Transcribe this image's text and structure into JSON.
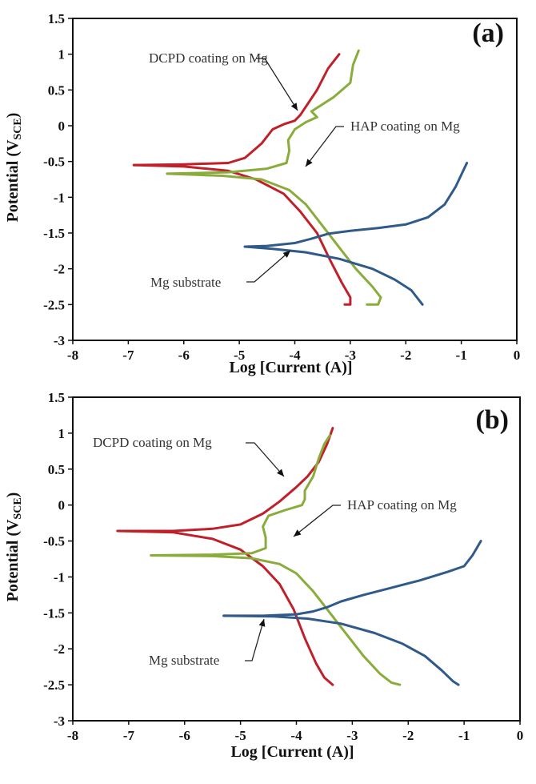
{
  "chart_data": [
    {
      "type": "line",
      "panel_label": "(a)",
      "xlabel": "Log [Current (A)]",
      "ylabel": "Potential (V",
      "ylabel_sub": "SCE",
      "ylabel_close": ")",
      "xlim": [
        -8,
        0
      ],
      "ylim": [
        -3,
        1.5
      ],
      "xticks": [
        "-8",
        "-7",
        "-6",
        "-5",
        "-4",
        "-3",
        "-2",
        "-1",
        "0"
      ],
      "yticks": [
        "1.5",
        "1",
        "0.5",
        "0",
        "-0.5",
        "-1",
        "-1.5",
        "-2",
        "-2.5",
        "-3"
      ],
      "grid": false,
      "series": [
        {
          "name": "DCPD coating on Mg",
          "color": "#c0202a",
          "anodic": [
            [
              -6.9,
              -0.55
            ],
            [
              -6.0,
              -0.54
            ],
            [
              -5.2,
              -0.52
            ],
            [
              -4.9,
              -0.45
            ],
            [
              -4.6,
              -0.25
            ],
            [
              -4.4,
              -0.05
            ],
            [
              -4.2,
              0.02
            ],
            [
              -4.0,
              0.07
            ],
            [
              -3.9,
              0.15
            ],
            [
              -3.6,
              0.5
            ],
            [
              -3.4,
              0.8
            ],
            [
              -3.2,
              1.0
            ]
          ],
          "cathodic": [
            [
              -6.9,
              -0.55
            ],
            [
              -6.0,
              -0.57
            ],
            [
              -5.2,
              -0.63
            ],
            [
              -4.7,
              -0.75
            ],
            [
              -4.2,
              -0.95
            ],
            [
              -3.9,
              -1.2
            ],
            [
              -3.6,
              -1.5
            ],
            [
              -3.35,
              -1.9
            ],
            [
              -3.15,
              -2.2
            ],
            [
              -3.0,
              -2.4
            ],
            [
              -3.0,
              -2.5
            ],
            [
              -3.1,
              -2.5
            ]
          ]
        },
        {
          "name": "HAP coating on Mg",
          "color": "#8aac3c",
          "anodic": [
            [
              -6.3,
              -0.67
            ],
            [
              -5.2,
              -0.65
            ],
            [
              -4.5,
              -0.6
            ],
            [
              -4.15,
              -0.52
            ],
            [
              -4.1,
              -0.35
            ],
            [
              -4.12,
              -0.2
            ],
            [
              -4.0,
              -0.05
            ],
            [
              -3.8,
              0.05
            ],
            [
              -3.6,
              0.12
            ],
            [
              -3.7,
              0.2
            ],
            [
              -3.3,
              0.4
            ],
            [
              -3.0,
              0.6
            ],
            [
              -2.95,
              0.85
            ],
            [
              -2.85,
              1.05
            ]
          ],
          "cathodic": [
            [
              -6.3,
              -0.67
            ],
            [
              -5.3,
              -0.7
            ],
            [
              -4.6,
              -0.75
            ],
            [
              -4.1,
              -0.9
            ],
            [
              -3.8,
              -1.1
            ],
            [
              -3.5,
              -1.4
            ],
            [
              -3.2,
              -1.7
            ],
            [
              -2.9,
              -2.0
            ],
            [
              -2.6,
              -2.25
            ],
            [
              -2.45,
              -2.4
            ],
            [
              -2.5,
              -2.5
            ],
            [
              -2.7,
              -2.5
            ]
          ]
        },
        {
          "name": "Mg substrate",
          "color": "#2f5a8a",
          "anodic": [
            [
              -4.9,
              -1.69
            ],
            [
              -4.5,
              -1.68
            ],
            [
              -4.0,
              -1.64
            ],
            [
              -3.7,
              -1.58
            ],
            [
              -3.4,
              -1.51
            ],
            [
              -3.0,
              -1.47
            ],
            [
              -2.5,
              -1.43
            ],
            [
              -2.0,
              -1.38
            ],
            [
              -1.6,
              -1.28
            ],
            [
              -1.3,
              -1.1
            ],
            [
              -1.1,
              -0.85
            ],
            [
              -0.9,
              -0.52
            ]
          ],
          "cathodic": [
            [
              -4.9,
              -1.69
            ],
            [
              -4.4,
              -1.72
            ],
            [
              -3.8,
              -1.77
            ],
            [
              -3.2,
              -1.86
            ],
            [
              -2.6,
              -2.0
            ],
            [
              -2.2,
              -2.15
            ],
            [
              -1.9,
              -2.3
            ],
            [
              -1.7,
              -2.5
            ]
          ]
        }
      ],
      "annotations": [
        {
          "text": "DCPD coating on Mg",
          "points_to": [
            -4.0,
            0.07
          ]
        },
        {
          "text": "HAP coating on Mg",
          "points_to": [
            -3.9,
            -0.95
          ]
        },
        {
          "text": "Mg substrate",
          "points_to": [
            -4.0,
            -1.75
          ]
        }
      ]
    },
    {
      "type": "line",
      "panel_label": "(b)",
      "xlabel": "Log [Current (A)]",
      "ylabel": "Potential (V",
      "ylabel_sub": "SCE",
      "ylabel_close": ")",
      "xlim": [
        -8,
        0
      ],
      "ylim": [
        -3,
        1.5
      ],
      "xticks": [
        "-8",
        "-7",
        "-6",
        "-5",
        "-4",
        "-3",
        "-2",
        "-1",
        "0"
      ],
      "yticks": [
        "1.5",
        "1",
        "0.5",
        "0",
        "-0.5",
        "-1",
        "-1.5",
        "-2",
        "-2.5",
        "-3"
      ],
      "grid": false,
      "series": [
        {
          "name": "DCPD coating on Mg",
          "color": "#c0202a",
          "anodic": [
            [
              -7.2,
              -0.36
            ],
            [
              -6.2,
              -0.36
            ],
            [
              -5.5,
              -0.33
            ],
            [
              -5.0,
              -0.27
            ],
            [
              -4.6,
              -0.12
            ],
            [
              -4.3,
              0.05
            ],
            [
              -4.0,
              0.25
            ],
            [
              -3.8,
              0.4
            ],
            [
              -3.6,
              0.6
            ],
            [
              -3.45,
              0.85
            ],
            [
              -3.35,
              1.07
            ]
          ],
          "cathodic": [
            [
              -7.2,
              -0.36
            ],
            [
              -6.2,
              -0.38
            ],
            [
              -5.5,
              -0.47
            ],
            [
              -5.0,
              -0.62
            ],
            [
              -4.6,
              -0.85
            ],
            [
              -4.3,
              -1.1
            ],
            [
              -4.05,
              -1.45
            ],
            [
              -3.85,
              -1.85
            ],
            [
              -3.65,
              -2.2
            ],
            [
              -3.5,
              -2.4
            ],
            [
              -3.35,
              -2.5
            ]
          ]
        },
        {
          "name": "HAP coating on Mg",
          "color": "#8aac3c",
          "anodic": [
            [
              -6.6,
              -0.7
            ],
            [
              -5.5,
              -0.69
            ],
            [
              -4.8,
              -0.67
            ],
            [
              -4.55,
              -0.6
            ],
            [
              -4.55,
              -0.45
            ],
            [
              -4.6,
              -0.3
            ],
            [
              -4.5,
              -0.15
            ],
            [
              -4.2,
              -0.07
            ],
            [
              -3.9,
              0.0
            ],
            [
              -3.85,
              0.08
            ],
            [
              -3.85,
              0.2
            ],
            [
              -3.7,
              0.4
            ],
            [
              -3.6,
              0.65
            ],
            [
              -3.5,
              0.85
            ],
            [
              -3.4,
              0.97
            ]
          ],
          "cathodic": [
            [
              -6.6,
              -0.7
            ],
            [
              -5.5,
              -0.71
            ],
            [
              -4.8,
              -0.74
            ],
            [
              -4.3,
              -0.82
            ],
            [
              -4.0,
              -0.95
            ],
            [
              -3.7,
              -1.2
            ],
            [
              -3.4,
              -1.5
            ],
            [
              -3.1,
              -1.8
            ],
            [
              -2.8,
              -2.1
            ],
            [
              -2.5,
              -2.35
            ],
            [
              -2.3,
              -2.47
            ],
            [
              -2.15,
              -2.5
            ]
          ]
        },
        {
          "name": "Mg substrate",
          "color": "#2f5a8a",
          "anodic": [
            [
              -5.3,
              -1.54
            ],
            [
              -4.6,
              -1.54
            ],
            [
              -4.0,
              -1.52
            ],
            [
              -3.7,
              -1.48
            ],
            [
              -3.45,
              -1.42
            ],
            [
              -3.2,
              -1.34
            ],
            [
              -2.8,
              -1.25
            ],
            [
              -2.3,
              -1.15
            ],
            [
              -1.8,
              -1.05
            ],
            [
              -1.3,
              -0.93
            ],
            [
              -1.0,
              -0.85
            ],
            [
              -0.85,
              -0.7
            ],
            [
              -0.7,
              -0.5
            ]
          ],
          "cathodic": [
            [
              -5.3,
              -1.54
            ],
            [
              -4.4,
              -1.55
            ],
            [
              -3.8,
              -1.58
            ],
            [
              -3.2,
              -1.65
            ],
            [
              -2.6,
              -1.78
            ],
            [
              -2.1,
              -1.93
            ],
            [
              -1.7,
              -2.1
            ],
            [
              -1.4,
              -2.3
            ],
            [
              -1.2,
              -2.45
            ],
            [
              -1.1,
              -2.5
            ]
          ]
        }
      ],
      "annotations": [
        {
          "text": "DCPD coating on Mg",
          "points_to": [
            -3.8,
            0.4
          ]
        },
        {
          "text": "HAP coating on Mg",
          "points_to": [
            -3.9,
            -0.92
          ]
        },
        {
          "text": "Mg substrate",
          "points_to": [
            -4.4,
            -1.57
          ]
        }
      ]
    }
  ]
}
